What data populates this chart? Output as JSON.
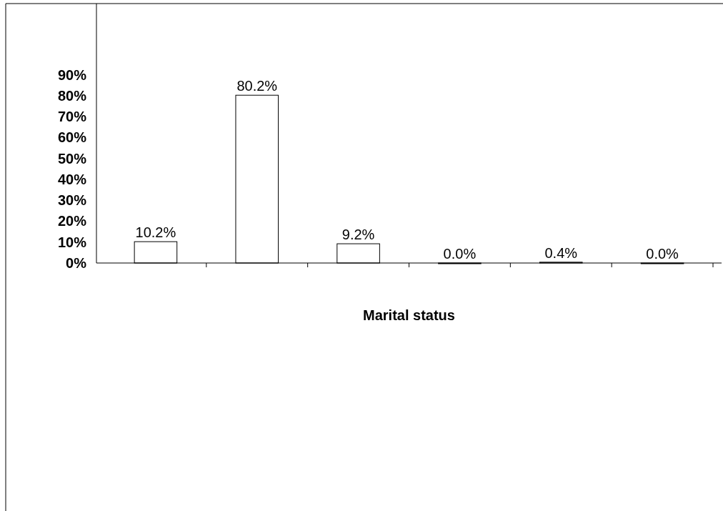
{
  "chart_data": {
    "type": "bar",
    "xlabel": "Marital status",
    "categories": [
      null,
      null,
      null,
      null,
      null,
      null
    ],
    "values": [
      10.2,
      80.2,
      9.2,
      0.0,
      0.4,
      0.0
    ],
    "value_labels": [
      "10.2%",
      "80.2%",
      "9.2%",
      "0.0%",
      "0.4%",
      "0.0%"
    ],
    "color": "#ffffff",
    "ylim": [
      0,
      124
    ],
    "yticks": [
      {
        "value": 0,
        "label": "0%"
      },
      {
        "value": 10,
        "label": "10%"
      },
      {
        "value": 20,
        "label": "20%"
      },
      {
        "value": 30,
        "label": "30%"
      },
      {
        "value": 40,
        "label": "40%"
      },
      {
        "value": 50,
        "label": "50%"
      },
      {
        "value": 60,
        "label": "60%"
      },
      {
        "value": 70,
        "label": "70%"
      },
      {
        "value": 80,
        "label": "80%"
      },
      {
        "value": 90,
        "label": "90%"
      }
    ],
    "grid": false
  }
}
